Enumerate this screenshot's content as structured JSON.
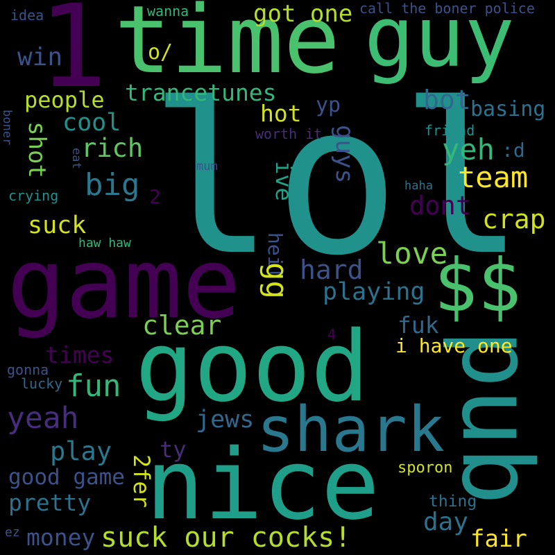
{
  "words": [
    {
      "key": "lol",
      "text": "lol",
      "color": "#21918c"
    },
    {
      "key": "time",
      "text": "time",
      "color": "#4ac16d"
    },
    {
      "key": "guy",
      "text": "guy",
      "color": "#3dbc74"
    },
    {
      "key": "one",
      "text": "1",
      "color": "#440154"
    },
    {
      "key": "game",
      "text": "game",
      "color": "#440154"
    },
    {
      "key": "good",
      "text": "good",
      "color": "#22a785"
    },
    {
      "key": "nice",
      "text": "nice",
      "color": "#1f9e89"
    },
    {
      "key": "pub",
      "text": "pub",
      "color": "#21908d"
    },
    {
      "key": "dollars",
      "text": "$$",
      "color": "#4ac16d"
    },
    {
      "key": "shark",
      "text": "shark",
      "color": "#2a788e"
    },
    {
      "key": "suck_our",
      "text": "suck our cocks!",
      "color": "#b5de2b"
    },
    {
      "key": "trancetunes",
      "text": "trancetunes",
      "color": "#35b779"
    },
    {
      "key": "got_one",
      "text": "got one",
      "color": "#b5de2b"
    },
    {
      "key": "o_slash",
      "text": "o/",
      "color": "#d2e21b"
    },
    {
      "key": "win",
      "text": "win",
      "color": "#3b528b"
    },
    {
      "key": "people",
      "text": "people",
      "color": "#b5de2b"
    },
    {
      "key": "cool",
      "text": "cool",
      "color": "#21918c"
    },
    {
      "key": "shot",
      "text": "shot",
      "color": "#7ad151"
    },
    {
      "key": "rich",
      "text": "rich",
      "color": "#5ec962"
    },
    {
      "key": "big",
      "text": "big",
      "color": "#2a788e"
    },
    {
      "key": "hot",
      "text": "hot",
      "color": "#d2e21b"
    },
    {
      "key": "bot",
      "text": "bot",
      "color": "#31688e"
    },
    {
      "key": "basing",
      "text": "basing",
      "color": "#2c728e"
    },
    {
      "key": "yp",
      "text": "yp",
      "color": "#3b528b"
    },
    {
      "key": "guys",
      "text": "guys",
      "color": "#3b528b"
    },
    {
      "key": "yeh",
      "text": "yeh",
      "color": "#35b779"
    },
    {
      "key": "colon_d",
      "text": ":d",
      "color": "#31688e"
    },
    {
      "key": "team",
      "text": "team",
      "color": "#fde725"
    },
    {
      "key": "ive",
      "text": "ive",
      "color": "#20a386"
    },
    {
      "key": "two",
      "text": "2",
      "color": "#440154"
    },
    {
      "key": "dont",
      "text": "dont",
      "color": "#440154"
    },
    {
      "key": "crap",
      "text": "crap",
      "color": "#d2e21b"
    },
    {
      "key": "suck",
      "text": "suck",
      "color": "#d2e21b"
    },
    {
      "key": "love",
      "text": "love",
      "color": "#7ad151"
    },
    {
      "key": "heil",
      "text": "heil",
      "color": "#3b528b"
    },
    {
      "key": "hard",
      "text": "hard",
      "color": "#3b528b"
    },
    {
      "key": "gg",
      "text": "gg",
      "color": "#d2e21b"
    },
    {
      "key": "playing",
      "text": "playing",
      "color": "#2c728e"
    },
    {
      "key": "clear",
      "text": "clear",
      "color": "#7ad151"
    },
    {
      "key": "fuk",
      "text": "fuk",
      "color": "#31688e"
    },
    {
      "key": "times",
      "text": "times",
      "color": "#440154"
    },
    {
      "key": "i_have_one",
      "text": "i have one",
      "color": "#fde725"
    },
    {
      "key": "four",
      "text": "4",
      "color": "#440154"
    },
    {
      "key": "fun",
      "text": "fun",
      "color": "#35b779"
    },
    {
      "key": "yeah",
      "text": "yeah",
      "color": "#472d7b"
    },
    {
      "key": "jews",
      "text": "jews",
      "color": "#31688e"
    },
    {
      "key": "play",
      "text": "play",
      "color": "#2a788e"
    },
    {
      "key": "ty",
      "text": "ty",
      "color": "#472d7b"
    },
    {
      "key": "twofer",
      "text": "2fer",
      "color": "#d2e21b"
    },
    {
      "key": "good_game",
      "text": "good game",
      "color": "#3b528b"
    },
    {
      "key": "pretty",
      "text": "pretty",
      "color": "#2c728e"
    },
    {
      "key": "money",
      "text": "money",
      "color": "#3b528b"
    },
    {
      "key": "day",
      "text": "day",
      "color": "#2c728e"
    },
    {
      "key": "fair",
      "text": "fair",
      "color": "#fde725"
    },
    {
      "key": "sporon",
      "text": "sporon",
      "color": "#d2e21b"
    },
    {
      "key": "thing",
      "text": "thing",
      "color": "#2c728e"
    },
    {
      "key": "idea",
      "text": "idea",
      "color": "#3b528b"
    },
    {
      "key": "wanna",
      "text": "wanna",
      "color": "#35b779"
    },
    {
      "key": "call_the",
      "text": "call the boner police",
      "color": "#3b528b"
    },
    {
      "key": "worth_it",
      "text": "worth it",
      "color": "#472d7b"
    },
    {
      "key": "friend",
      "text": "friend",
      "color": "#21918c"
    },
    {
      "key": "boner",
      "text": "boner",
      "color": "#3b528b"
    },
    {
      "key": "eat",
      "text": "eat",
      "color": "#3b528b"
    },
    {
      "key": "mum",
      "text": "mum",
      "color": "#3b528b"
    },
    {
      "key": "haha",
      "text": "haha",
      "color": "#2c728e"
    },
    {
      "key": "crying",
      "text": "crying",
      "color": "#21918c"
    },
    {
      "key": "haw_haw",
      "text": "haw haw",
      "color": "#35b779"
    },
    {
      "key": "gonna",
      "text": "gonna",
      "color": "#3b528b"
    },
    {
      "key": "lucky",
      "text": "lucky",
      "color": "#31688e"
    },
    {
      "key": "ez",
      "text": "ez",
      "color": "#3b528b"
    }
  ]
}
